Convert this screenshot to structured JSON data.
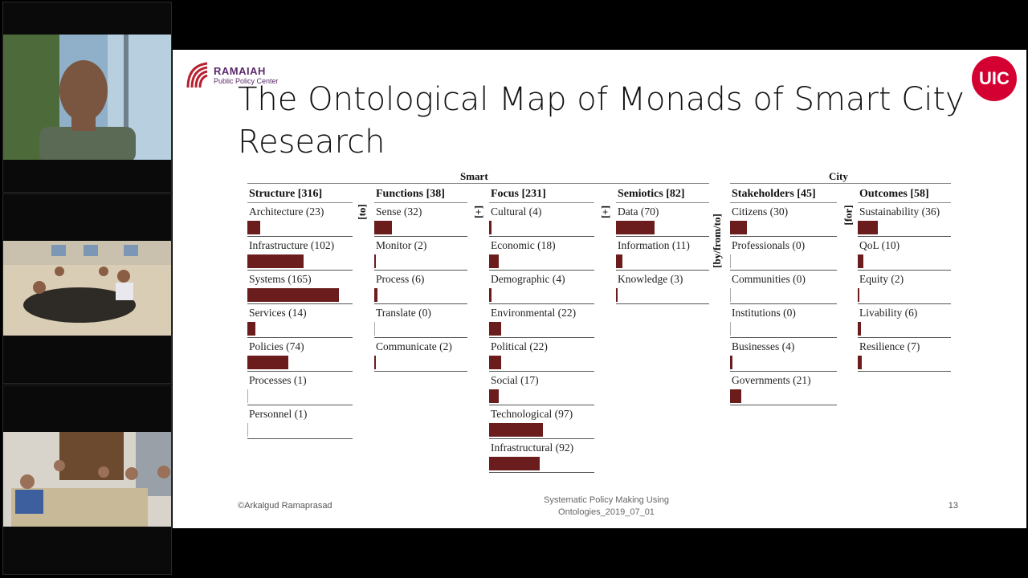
{
  "slide": {
    "title": "The Ontological Map of Monads of Smart City Research",
    "logos": {
      "left_name": "RAMAIAH",
      "left_sub": "Public Policy Center",
      "right": "UIC"
    },
    "footer": {
      "left": "©Arkalgud Ramaprasad",
      "center_line1": "Systematic Policy Making Using",
      "center_line2": "Ontologies_2019_07_01",
      "page": "13"
    },
    "groups": {
      "smart": "Smart",
      "city": "City"
    },
    "connectors": [
      "[to]",
      "[+]",
      "[+]",
      "[by/from/to]",
      "[for]"
    ],
    "bar_color": "#6b1d1d",
    "dimensions": [
      {
        "header": "Structure [316]",
        "items": [
          {
            "label": "Architecture (23)",
            "value": 23
          },
          {
            "label": "Infrastructure (102)",
            "value": 102
          },
          {
            "label": "Systems (165)",
            "value": 165
          },
          {
            "label": "Services (14)",
            "value": 14
          },
          {
            "label": "Policies (74)",
            "value": 74
          },
          {
            "label": "Processes (1)",
            "value": 1
          },
          {
            "label": "Personnel (1)",
            "value": 1
          }
        ]
      },
      {
        "header": "Functions [38]",
        "items": [
          {
            "label": "Sense (32)",
            "value": 32
          },
          {
            "label": "Monitor (2)",
            "value": 2
          },
          {
            "label": "Process (6)",
            "value": 6
          },
          {
            "label": "Translate (0)",
            "value": 0
          },
          {
            "label": "Communicate (2)",
            "value": 2
          }
        ]
      },
      {
        "header": "Focus [231]",
        "items": [
          {
            "label": "Cultural (4)",
            "value": 4
          },
          {
            "label": "Economic (18)",
            "value": 18
          },
          {
            "label": "Demographic (4)",
            "value": 4
          },
          {
            "label": "Environmental (22)",
            "value": 22
          },
          {
            "label": "Political (22)",
            "value": 22
          },
          {
            "label": "Social (17)",
            "value": 17
          },
          {
            "label": "Technological (97)",
            "value": 97
          },
          {
            "label": "Infrastructural (92)",
            "value": 92
          }
        ]
      },
      {
        "header": "Semiotics [82]",
        "items": [
          {
            "label": "Data (70)",
            "value": 70
          },
          {
            "label": "Information (11)",
            "value": 11
          },
          {
            "label": "Knowledge (3)",
            "value": 3
          }
        ]
      },
      {
        "header": "Stakeholders [45]",
        "items": [
          {
            "label": "Citizens (30)",
            "value": 30
          },
          {
            "label": "Professionals (0)",
            "value": 0
          },
          {
            "label": "Communities (0)",
            "value": 0
          },
          {
            "label": "Institutions (0)",
            "value": 0
          },
          {
            "label": "Businesses (4)",
            "value": 4
          },
          {
            "label": "Governments (21)",
            "value": 21
          }
        ]
      },
      {
        "header": "Outcomes [58]",
        "items": [
          {
            "label": "Sustainability (36)",
            "value": 36
          },
          {
            "label": "QoL (10)",
            "value": 10
          },
          {
            "label": "Equity (2)",
            "value": 2
          },
          {
            "label": "Livability (6)",
            "value": 6
          },
          {
            "label": "Resilience (7)",
            "value": 7
          }
        ]
      }
    ]
  }
}
